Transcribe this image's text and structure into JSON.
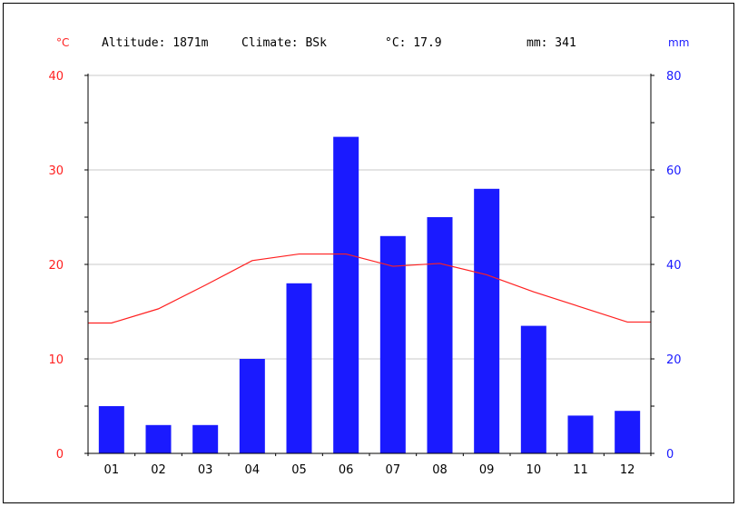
{
  "header": {
    "altitude": "Altitude: 1871m",
    "climate": "Climate: BSk",
    "temp_mean": "°C: 17.9",
    "precip_total": "mm: 341"
  },
  "colors": {
    "temperature": "#ff2020",
    "precipitation": "#1a1aff",
    "grid": "#c8c8c8",
    "axis": "#000000"
  },
  "chart_data": {
    "type": "bar",
    "categories": [
      "01",
      "02",
      "03",
      "04",
      "05",
      "06",
      "07",
      "08",
      "09",
      "10",
      "11",
      "12"
    ],
    "left_axis": {
      "label": "°C",
      "ylim": [
        0,
        40
      ],
      "ticks": [
        "0",
        "10",
        "20",
        "30",
        "40"
      ]
    },
    "right_axis": {
      "label": "mm",
      "ylim": [
        0,
        80
      ],
      "ticks": [
        "0",
        "20",
        "40",
        "60",
        "80"
      ]
    },
    "series": [
      {
        "type": "bar",
        "axis": "right",
        "values": [
          10,
          6,
          6,
          20,
          36,
          67,
          46,
          50,
          56,
          27,
          8,
          9
        ]
      },
      {
        "type": "line",
        "axis": "left",
        "values": [
          13.8,
          15.3,
          17.8,
          20.4,
          21.1,
          21.1,
          19.8,
          20.1,
          18.9,
          17.1,
          15.5,
          13.9
        ]
      }
    ],
    "grid": true
  }
}
